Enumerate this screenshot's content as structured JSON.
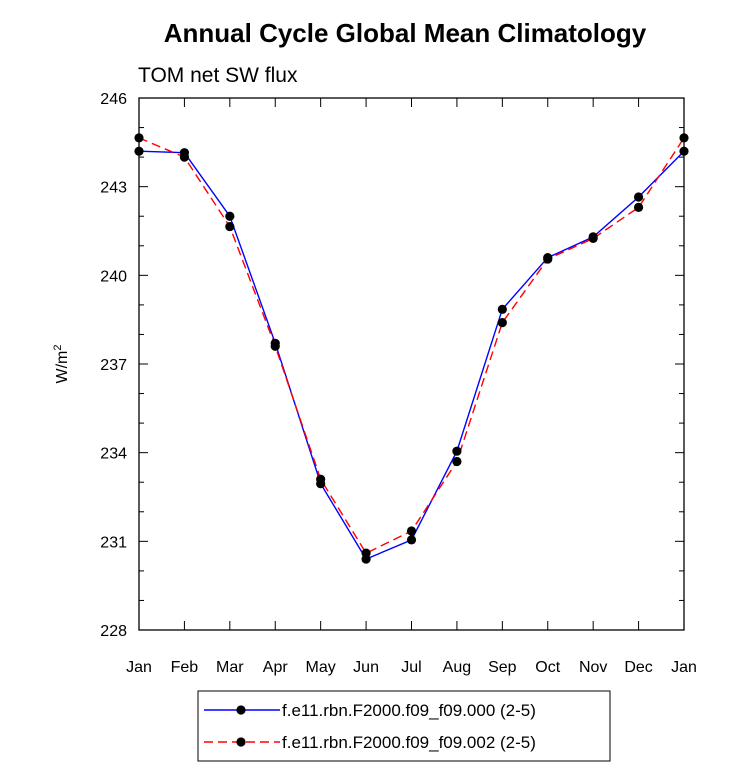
{
  "chart_data": {
    "type": "line",
    "title": "Annual Cycle Global Mean Climatology",
    "subtitle": "TOM net SW flux",
    "ylabel": "W/m",
    "ylabel_sup": "2",
    "xlabel": "",
    "ylim": [
      228,
      246
    ],
    "yticks": [
      228,
      231,
      234,
      237,
      240,
      243,
      246
    ],
    "categories": [
      "Jan",
      "Feb",
      "Mar",
      "Apr",
      "May",
      "Jun",
      "Jul",
      "Aug",
      "Sep",
      "Oct",
      "Nov",
      "Dec",
      "Jan"
    ],
    "series": [
      {
        "name": "f.e11.rbn.F2000.f09_f09.000 (2-5)",
        "color": "#0000ff",
        "dash": "solid",
        "values": [
          244.2,
          244.15,
          242.0,
          237.7,
          232.95,
          230.4,
          231.05,
          234.05,
          238.85,
          240.6,
          241.3,
          242.65,
          244.2
        ]
      },
      {
        "name": "f.e11.rbn.F2000.f09_f09.002 (2-5)",
        "color": "#ff0000",
        "dash": "dashed",
        "values": [
          244.65,
          244.0,
          241.65,
          237.6,
          233.1,
          230.6,
          231.35,
          233.7,
          238.4,
          240.55,
          241.25,
          242.3,
          244.65
        ]
      }
    ],
    "legend_position": "bottom-center"
  }
}
